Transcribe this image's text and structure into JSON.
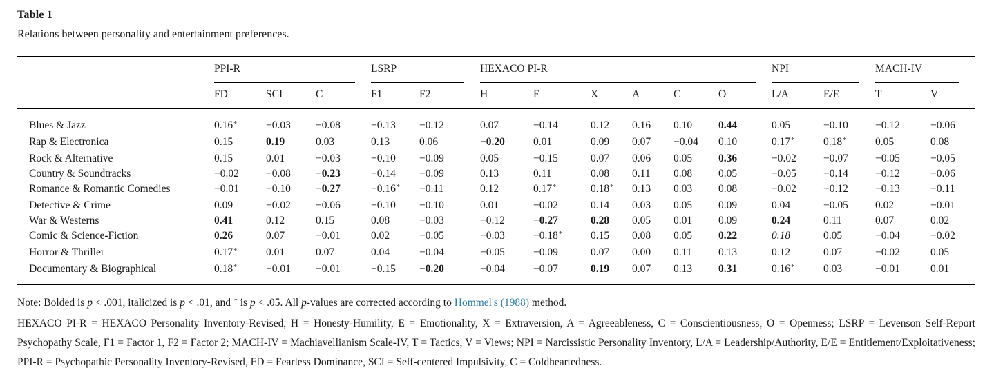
{
  "page": {
    "title": "Table 1",
    "caption": "Relations between personality and entertainment preferences."
  },
  "table": {
    "groups": [
      {
        "label": "PPI-R",
        "columns": [
          "FD",
          "SCI",
          "C"
        ]
      },
      {
        "label": "LSRP",
        "columns": [
          "F1",
          "F2"
        ]
      },
      {
        "label": "HEXACO PI-R",
        "columns": [
          "H",
          "E",
          "X",
          "A",
          "C",
          "O"
        ]
      },
      {
        "label": "NPI",
        "columns": [
          "L/A",
          "E/E"
        ]
      },
      {
        "label": "MACH-IV",
        "columns": [
          "T",
          "V"
        ]
      }
    ],
    "rows": [
      {
        "label": "Blues & Jazz",
        "cells": [
          [
            "0.16*",
            ""
          ],
          [
            "−0.03",
            ""
          ],
          [
            "−0.08",
            ""
          ],
          [
            "−0.13",
            ""
          ],
          [
            "−0.12",
            ""
          ],
          [
            "0.07",
            ""
          ],
          [
            "−0.14",
            ""
          ],
          [
            "0.12",
            ""
          ],
          [
            "0.16",
            ""
          ],
          [
            "0.10",
            ""
          ],
          [
            "0.44",
            "b"
          ],
          [
            "0.05",
            ""
          ],
          [
            "−0.10",
            ""
          ],
          [
            "−0.12",
            ""
          ],
          [
            "−0.06",
            ""
          ]
        ]
      },
      {
        "label": "Rap & Electronica",
        "cells": [
          [
            "0.15",
            ""
          ],
          [
            "0.19",
            "b"
          ],
          [
            "0.03",
            ""
          ],
          [
            "0.13",
            ""
          ],
          [
            "0.06",
            ""
          ],
          [
            "−0.20",
            "b"
          ],
          [
            "0.01",
            ""
          ],
          [
            "0.09",
            ""
          ],
          [
            "0.07",
            ""
          ],
          [
            "−0.04",
            ""
          ],
          [
            "0.10",
            ""
          ],
          [
            "0.17*",
            ""
          ],
          [
            "0.18*",
            ""
          ],
          [
            "0.05",
            ""
          ],
          [
            "0.08",
            ""
          ]
        ]
      },
      {
        "label": "Rock & Alternative",
        "cells": [
          [
            "0.15",
            ""
          ],
          [
            "0.01",
            ""
          ],
          [
            "−0.03",
            ""
          ],
          [
            "−0.10",
            ""
          ],
          [
            "−0.09",
            ""
          ],
          [
            "0.05",
            ""
          ],
          [
            "−0.15",
            ""
          ],
          [
            "0.07",
            ""
          ],
          [
            "0.06",
            ""
          ],
          [
            "0.05",
            ""
          ],
          [
            "0.36",
            "b"
          ],
          [
            "−0.02",
            ""
          ],
          [
            "−0.07",
            ""
          ],
          [
            "−0.05",
            ""
          ],
          [
            "−0.05",
            ""
          ]
        ]
      },
      {
        "label": "Country & Soundtracks",
        "cells": [
          [
            "−0.02",
            ""
          ],
          [
            "−0.08",
            ""
          ],
          [
            "−0.23",
            "b"
          ],
          [
            "−0.14",
            ""
          ],
          [
            "−0.09",
            ""
          ],
          [
            "0.13",
            ""
          ],
          [
            "0.11",
            ""
          ],
          [
            "0.08",
            ""
          ],
          [
            "0.11",
            ""
          ],
          [
            "0.08",
            ""
          ],
          [
            "0.05",
            ""
          ],
          [
            "−0.05",
            ""
          ],
          [
            "−0.14",
            ""
          ],
          [
            "−0.12",
            ""
          ],
          [
            "−0.06",
            ""
          ]
        ]
      },
      {
        "label": "Romance & Romantic Comedies",
        "cells": [
          [
            "−0.01",
            ""
          ],
          [
            "−0.10",
            ""
          ],
          [
            "−0.27",
            "b"
          ],
          [
            "−0.16*",
            ""
          ],
          [
            "−0.11",
            ""
          ],
          [
            "0.12",
            ""
          ],
          [
            "0.17*",
            ""
          ],
          [
            "0.18*",
            ""
          ],
          [
            "0.13",
            ""
          ],
          [
            "0.03",
            ""
          ],
          [
            "0.08",
            ""
          ],
          [
            "−0.02",
            ""
          ],
          [
            "−0.12",
            ""
          ],
          [
            "−0.13",
            ""
          ],
          [
            "−0.11",
            ""
          ]
        ]
      },
      {
        "label": "Detective & Crime",
        "cells": [
          [
            "0.09",
            ""
          ],
          [
            "−0.02",
            ""
          ],
          [
            "−0.06",
            ""
          ],
          [
            "−0.10",
            ""
          ],
          [
            "−0.10",
            ""
          ],
          [
            "0.01",
            ""
          ],
          [
            "−0.02",
            ""
          ],
          [
            "0.14",
            ""
          ],
          [
            "0.03",
            ""
          ],
          [
            "0.05",
            ""
          ],
          [
            "0.09",
            ""
          ],
          [
            "0.04",
            ""
          ],
          [
            "−0.05",
            ""
          ],
          [
            "0.02",
            ""
          ],
          [
            "−0.01",
            ""
          ]
        ]
      },
      {
        "label": "War & Westerns",
        "cells": [
          [
            "0.41",
            "b"
          ],
          [
            "0.12",
            ""
          ],
          [
            "0.15",
            ""
          ],
          [
            "0.08",
            ""
          ],
          [
            "−0.03",
            ""
          ],
          [
            "−0.12",
            ""
          ],
          [
            "−0.27",
            "b"
          ],
          [
            "0.28",
            "b"
          ],
          [
            "0.05",
            ""
          ],
          [
            "0.01",
            ""
          ],
          [
            "0.09",
            ""
          ],
          [
            "0.24",
            "b"
          ],
          [
            "0.11",
            ""
          ],
          [
            "0.07",
            ""
          ],
          [
            "0.02",
            ""
          ]
        ]
      },
      {
        "label": "Comic & Science-Fiction",
        "cells": [
          [
            "0.26",
            "b"
          ],
          [
            "0.07",
            ""
          ],
          [
            "−0.01",
            ""
          ],
          [
            "0.02",
            ""
          ],
          [
            "−0.05",
            ""
          ],
          [
            "−0.03",
            ""
          ],
          [
            "−0.18*",
            ""
          ],
          [
            "0.15",
            ""
          ],
          [
            "0.08",
            ""
          ],
          [
            "0.05",
            ""
          ],
          [
            "0.22",
            "b"
          ],
          [
            "0.18",
            "i"
          ],
          [
            "0.05",
            ""
          ],
          [
            "−0.04",
            ""
          ],
          [
            "−0.02",
            ""
          ]
        ]
      },
      {
        "label": "Horror & Thriller",
        "cells": [
          [
            "0.17*",
            ""
          ],
          [
            "0.01",
            ""
          ],
          [
            "0.07",
            ""
          ],
          [
            "0.04",
            ""
          ],
          [
            "−0.04",
            ""
          ],
          [
            "−0.05",
            ""
          ],
          [
            "−0.09",
            ""
          ],
          [
            "0.07",
            ""
          ],
          [
            "0.00",
            ""
          ],
          [
            "0.11",
            ""
          ],
          [
            "0.13",
            ""
          ],
          [
            "0.12",
            ""
          ],
          [
            "0.07",
            ""
          ],
          [
            "−0.02",
            ""
          ],
          [
            "0.05",
            ""
          ]
        ]
      },
      {
        "label": "Documentary & Biographical",
        "cells": [
          [
            "0.18*",
            ""
          ],
          [
            "−0.01",
            ""
          ],
          [
            "−0.01",
            ""
          ],
          [
            "−0.15",
            ""
          ],
          [
            "−0.20",
            "b"
          ],
          [
            "−0.04",
            ""
          ],
          [
            "−0.07",
            ""
          ],
          [
            "0.19",
            "b"
          ],
          [
            "0.07",
            ""
          ],
          [
            "0.13",
            ""
          ],
          [
            "0.31",
            "b"
          ],
          [
            "0.16*",
            ""
          ],
          [
            "0.03",
            ""
          ],
          [
            "−0.01",
            ""
          ],
          [
            "0.01",
            ""
          ]
        ]
      }
    ]
  },
  "note": {
    "line1": [
      {
        "t": "Note: Bolded is "
      },
      {
        "t": "p",
        "i": true
      },
      {
        "t": " < .001, italicized is "
      },
      {
        "t": "p",
        "i": true
      },
      {
        "t": " < .01, and "
      },
      {
        "t": "*",
        "sup": true
      },
      {
        "t": " is "
      },
      {
        "t": "p",
        "i": true
      },
      {
        "t": " < .05. All "
      },
      {
        "t": "p",
        "i": true
      },
      {
        "t": "-values are corrected according to "
      },
      {
        "t": "Hommel's (1988)",
        "link": true
      },
      {
        "t": " method."
      }
    ],
    "abbreviations": "HEXACO PI-R = HEXACO Personality Inventory-Revised, H = Honesty-Humility, E = Emotionality, X = Extraversion, A = Agreeableness, C = Conscientiousness, O = Openness; LSRP = Levenson Self-Report Psychopathy Scale, F1 = Factor 1, F2 = Factor 2; MACH-IV = Machiavellianism Scale-IV, T = Tactics, V = Views; NPI = Narcissistic Personality Inventory, L/A = Leadership/Authority, E/E = Entitlement/Exploitativeness; PPI-R = Psychopathic Personality Inventory-Revised, FD = Fearless Dominance, SCI = Self-centered Impulsivity, C = Coldheartedness."
  },
  "colors": {
    "link": "#2e7ea8",
    "text": "#1a1a1a",
    "rule": "#000000"
  }
}
